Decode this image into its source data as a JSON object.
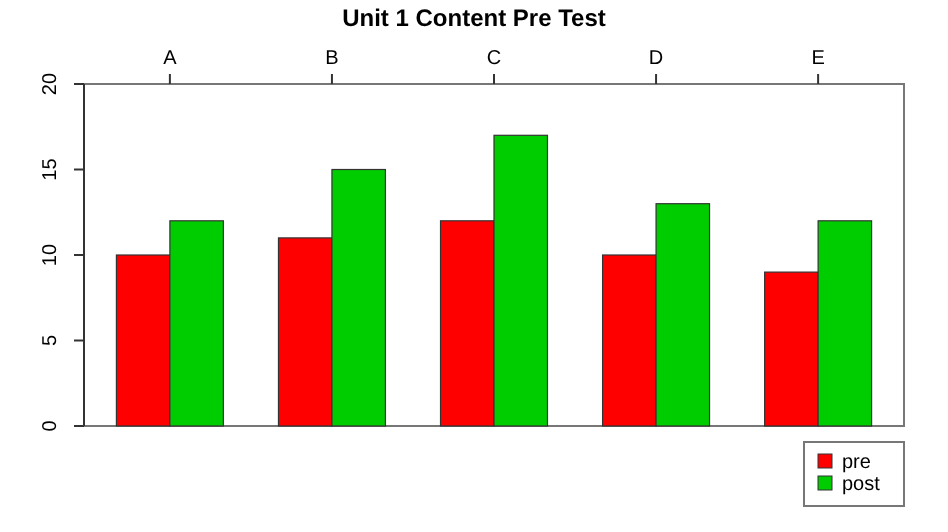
{
  "chart_data": {
    "type": "bar",
    "title": "Unit 1 Content Pre Test",
    "categories": [
      "A",
      "B",
      "C",
      "D",
      "E"
    ],
    "series": [
      {
        "name": "pre",
        "color": "#ff0000",
        "values": [
          10,
          11,
          12,
          10,
          9
        ]
      },
      {
        "name": "post",
        "color": "#00cd00",
        "values": [
          12,
          15,
          17,
          13,
          12
        ]
      }
    ],
    "ylim": [
      0,
      20
    ],
    "yticks": [
      0,
      5,
      10,
      15,
      20
    ],
    "legend": "bottom right"
  }
}
